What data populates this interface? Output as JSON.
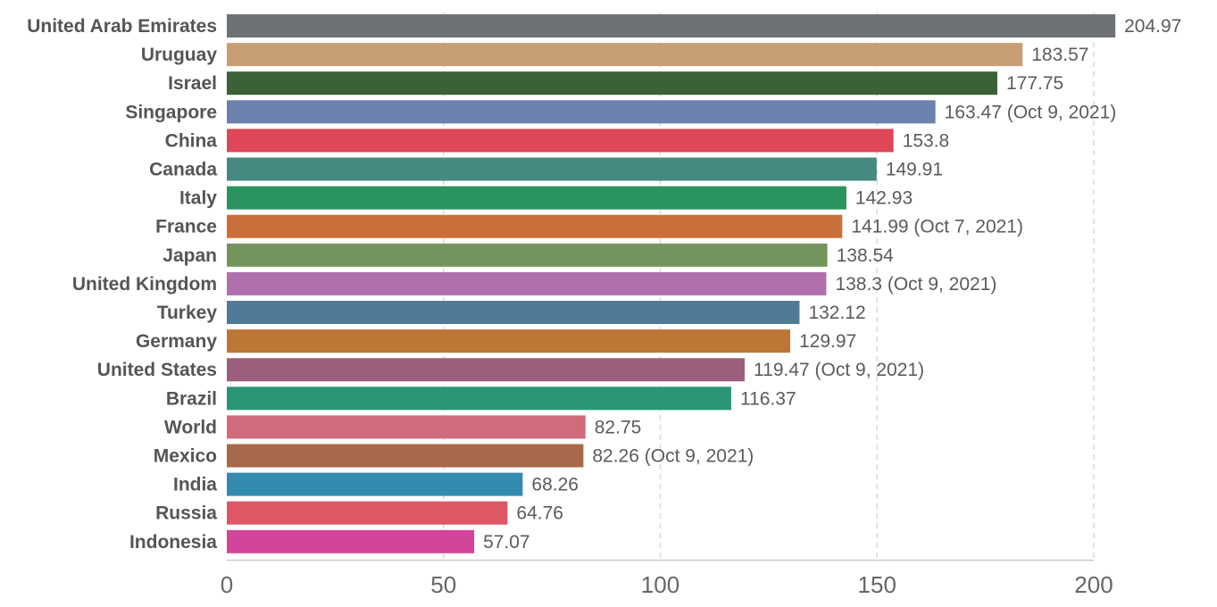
{
  "chart_data": {
    "type": "bar",
    "orientation": "horizontal",
    "title": "",
    "xlabel": "",
    "ylabel": "",
    "xlim": [
      0,
      205
    ],
    "x_ticks": [
      0,
      50,
      100,
      150,
      200
    ],
    "grid": true,
    "categories": [
      "United Arab Emirates",
      "Uruguay",
      "Israel",
      "Singapore",
      "China",
      "Canada",
      "Italy",
      "France",
      "Japan",
      "United Kingdom",
      "Turkey",
      "Germany",
      "United States",
      "Brazil",
      "World",
      "Mexico",
      "India",
      "Russia",
      "Indonesia"
    ],
    "values": [
      204.97,
      183.57,
      177.75,
      163.47,
      153.8,
      149.91,
      142.93,
      141.99,
      138.54,
      138.3,
      132.12,
      129.97,
      119.47,
      116.37,
      82.75,
      82.26,
      68.26,
      64.76,
      57.07
    ],
    "value_labels": [
      "204.97",
      "183.57",
      "177.75",
      "163.47 (Oct 9, 2021)",
      "153.8",
      "149.91",
      "142.93",
      "141.99 (Oct 7, 2021)",
      "138.54",
      "138.3 (Oct 9, 2021)",
      "132.12",
      "129.97",
      "119.47 (Oct 9, 2021)",
      "116.37",
      "82.75",
      "82.26 (Oct 9, 2021)",
      "68.26",
      "64.76",
      "57.07"
    ],
    "colors": [
      "#6e7176",
      "#c89f74",
      "#3b6136",
      "#6a82ad",
      "#df4657",
      "#458a80",
      "#2b935d",
      "#c96f3a",
      "#73955d",
      "#b070ad",
      "#507a98",
      "#bd7636",
      "#9c5f7e",
      "#2a9677",
      "#cf6b7b",
      "#a8684a",
      "#348bb0",
      "#de5765",
      "#d3449b"
    ]
  }
}
